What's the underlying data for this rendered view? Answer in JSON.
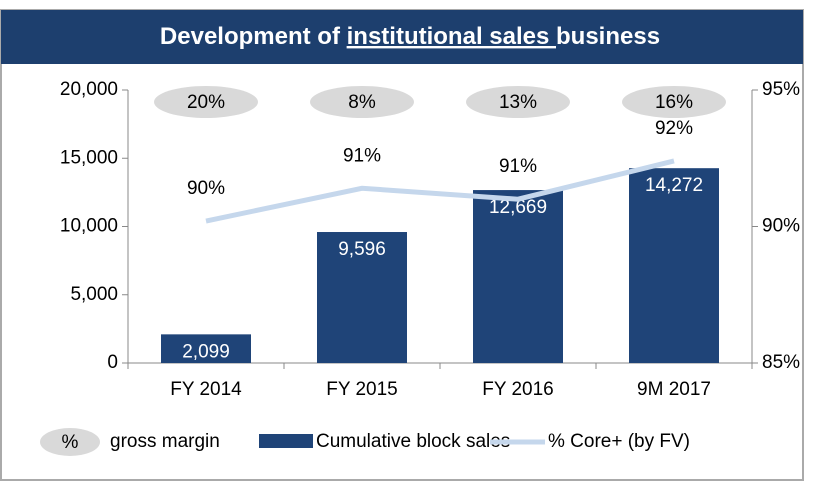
{
  "chart_data": {
    "type": "bar",
    "title": [
      "Development of ",
      "institutional sales ",
      "business"
    ],
    "categories": [
      "FY 2014",
      "FY 2015",
      "FY 2016",
      "9M 2017"
    ],
    "series": [
      {
        "name": "Cumulative block sales",
        "color": "#1f4478",
        "values": [
          2099,
          9596,
          12669,
          14272
        ],
        "value_labels": [
          "2,099",
          "9,596",
          "12,669",
          "14,272"
        ]
      },
      {
        "name": "% Core+ (by FV)",
        "color": "#c5d7ec",
        "type": "line",
        "axis": "y2",
        "values": [
          90.2,
          91.4,
          91.0,
          92.4
        ],
        "value_labels": [
          "90%",
          "91%",
          "91%",
          "92%"
        ]
      }
    ],
    "gross_margin": {
      "name": "gross margin",
      "symbol": "%",
      "color": "#d9d9d9",
      "values": [
        20,
        8,
        13,
        16
      ],
      "value_labels": [
        "20%",
        "8%",
        "13%",
        "16%"
      ]
    },
    "ylim": [
      0,
      20000
    ],
    "yticks": [
      0,
      {
        "value": 5000,
        "label": "5,000"
      },
      {
        "value": 10000,
        "label": "10,000"
      },
      {
        "value": 15000,
        "label": "15,000"
      },
      {
        "value": 20000,
        "label": "20,000"
      }
    ],
    "y2lim": [
      85,
      95
    ],
    "y2ticks": [
      {
        "value": 85,
        "label": "85%"
      },
      {
        "value": 90,
        "label": "90%"
      },
      {
        "value": 95,
        "label": "95%"
      }
    ],
    "legend": "bottom"
  }
}
